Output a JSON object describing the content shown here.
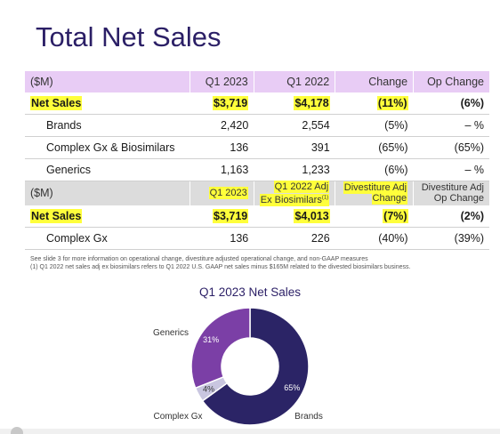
{
  "title": "Total Net Sales",
  "table1": {
    "header": [
      "($M)",
      "Q1 2023",
      "Q1 2022",
      "Change",
      "Op Change"
    ],
    "rows": [
      {
        "label": "Net Sales",
        "q1_2023": "$3,719",
        "q1_2022": "$4,178",
        "change": "(11%)",
        "op_change": "(6%)"
      },
      {
        "label": "Brands",
        "q1_2023": "2,420",
        "q1_2022": "2,554",
        "change": "(5%)",
        "op_change": "– %"
      },
      {
        "label": "Complex Gx & Biosimilars",
        "q1_2023": "136",
        "q1_2022": "391",
        "change": "(65%)",
        "op_change": "(65%)"
      },
      {
        "label": "Generics",
        "q1_2023": "1,163",
        "q1_2022": "1,233",
        "change": "(6%)",
        "op_change": "– %"
      }
    ]
  },
  "table2": {
    "header": {
      "label": "($M)",
      "c1": "Q1 2023",
      "c2_line1": "Q1 2022 Adj",
      "c2_line2": "Ex Biosimilars",
      "c2_sup": "(1)",
      "c3_line1": "Divestiture Adj",
      "c3_line2": "Change",
      "c4_line1": "Divestiture Adj",
      "c4_line2": "Op Change"
    },
    "rows": [
      {
        "label": "Net Sales",
        "q1_2023": "$3,719",
        "q1_2022_adj": "$4,013",
        "div_change": "(7%)",
        "div_op_change": "(2%)"
      },
      {
        "label": "Complex Gx",
        "q1_2023": "136",
        "q1_2022_adj": "226",
        "div_change": "(40%)",
        "div_op_change": "(39%)"
      }
    ]
  },
  "notes": {
    "line1": "See slide 3 for more information on operational change, divestiture adjusted operational change, and non-GAAP measures",
    "line2": "(1)    Q1 2022 net sales adj ex biosimilars refers to Q1 2022 U.S. GAAP net sales minus $165M related to the divested biosimilars business."
  },
  "chart_data": {
    "type": "pie",
    "title": "Q1 2023 Net Sales",
    "slices": [
      {
        "name": "Brands",
        "value": 65,
        "label": "65%",
        "color": "#2b2466"
      },
      {
        "name": "Complex Gx",
        "value": 4,
        "label": "4%",
        "color": "#c9c6e0"
      },
      {
        "name": "Generics",
        "value": 31,
        "label": "31%",
        "color": "#7b3fa6"
      }
    ]
  },
  "colors": {
    "highlight": "#ffff3b",
    "header1_bg": "#e8ccf5",
    "header2_bg": "#dcdcdc",
    "title": "#2b1f66"
  }
}
